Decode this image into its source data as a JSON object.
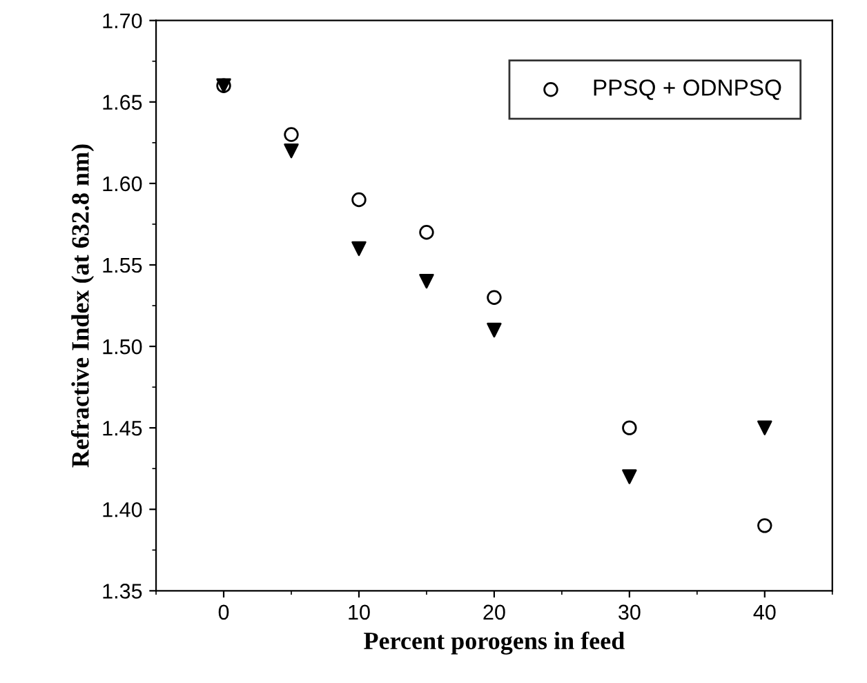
{
  "chart_data": {
    "type": "scatter",
    "xlabel": "Percent porogens in feed",
    "ylabel": "Refractive Index (at 632.8 nm)",
    "x": [
      0,
      5,
      10,
      15,
      20,
      30,
      40
    ],
    "series": [
      {
        "name": "PPSQ + ODNPSQ",
        "color": "#000000",
        "marker": "circle",
        "values": [
          1.66,
          1.63,
          1.59,
          1.57,
          1.53,
          1.45,
          1.39
        ]
      },
      {
        "color": "#000000",
        "marker": "triangle",
        "values": [
          1.66,
          1.62,
          1.56,
          1.54,
          1.51,
          1.42,
          1.45
        ]
      }
    ],
    "xlim": [
      -5,
      45
    ],
    "xticks": [
      0,
      10,
      20,
      30,
      40
    ],
    "ylim": [
      1.35,
      1.7
    ],
    "yticks": [
      1.35,
      {
        "value": 1.4,
        "label": "1.40"
      },
      1.45,
      {
        "value": 1.5,
        "label": "1.50"
      },
      1.55,
      {
        "value": 1.6,
        "label": "1.60"
      },
      1.65,
      {
        "value": 1.7,
        "label": "1.70"
      }
    ],
    "grid": false,
    "legend": "top right"
  }
}
